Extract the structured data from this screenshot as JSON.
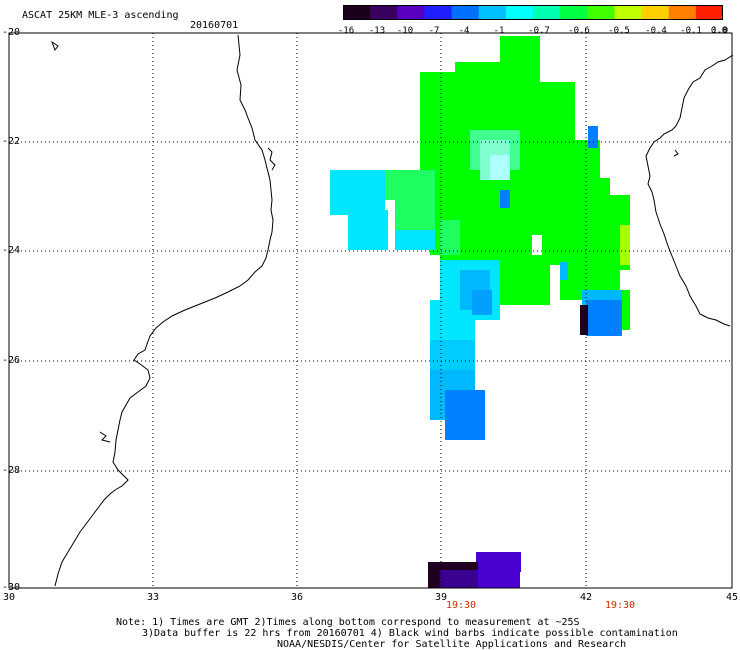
{
  "header": {
    "title": "ASCAT 25KM MLE-3 ascending",
    "date": "20160701"
  },
  "colorbar": {
    "labels": [
      "-16",
      "-13",
      "-10",
      "-7",
      "-4",
      "-1",
      "-0.7",
      "-0.6",
      "-0.5",
      "-0.4",
      "-0.1",
      "0.0",
      "1.0"
    ],
    "colors": [
      "#1a001a",
      "#3a0060",
      "#5a00c0",
      "#2020ff",
      "#0070ff",
      "#00c0ff",
      "#00ffff",
      "#00ffb0",
      "#00ff40",
      "#40ff00",
      "#c0ff00",
      "#ffd000",
      "#ff8000",
      "#ff2000"
    ]
  },
  "axes": {
    "lat_labels": [
      "-20",
      "-22",
      "-24",
      "-26",
      "-28",
      "-30"
    ],
    "lon_labels": [
      "30",
      "33",
      "36",
      "39",
      "42",
      "45"
    ]
  },
  "pass_times": [
    "19:30",
    "19:30"
  ],
  "notes": [
    "Note: 1) Times are GMT 2)Times along bottom correspond to measurement at ~25S",
    "3)Data buffer is 22 hrs from 20160701 4) Black wind barbs indicate possible contamination",
    "NOAA/NESDIS/Center for Satellite Applications and Research"
  ],
  "colors": {
    "green": "#00ff00",
    "light_green": "#20ff60",
    "cyan": "#00e6ff",
    "sky": "#00b8ff",
    "blue": "#0080ff",
    "dark_purple": "#200020",
    "purple": "#4a00d0",
    "coast": "#000000",
    "grid": "#000000",
    "time_red": "#cc2a00"
  }
}
